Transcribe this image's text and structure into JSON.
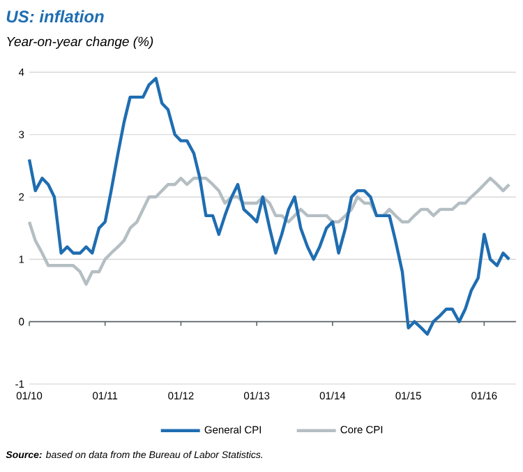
{
  "chart_data": {
    "type": "line",
    "title": "US: inflation",
    "subtitle": "Year-on-year change (%)",
    "x": [
      "2010-01",
      "2010-02",
      "2010-03",
      "2010-04",
      "2010-05",
      "2010-06",
      "2010-07",
      "2010-08",
      "2010-09",
      "2010-10",
      "2010-11",
      "2010-12",
      "2011-01",
      "2011-02",
      "2011-03",
      "2011-04",
      "2011-05",
      "2011-06",
      "2011-07",
      "2011-08",
      "2011-09",
      "2011-10",
      "2011-11",
      "2011-12",
      "2012-01",
      "2012-02",
      "2012-03",
      "2012-04",
      "2012-05",
      "2012-06",
      "2012-07",
      "2012-08",
      "2012-09",
      "2012-10",
      "2012-11",
      "2012-12",
      "2013-01",
      "2013-02",
      "2013-03",
      "2013-04",
      "2013-05",
      "2013-06",
      "2013-07",
      "2013-08",
      "2013-09",
      "2013-10",
      "2013-11",
      "2013-12",
      "2014-01",
      "2014-02",
      "2014-03",
      "2014-04",
      "2014-05",
      "2014-06",
      "2014-07",
      "2014-08",
      "2014-09",
      "2014-10",
      "2014-11",
      "2014-12",
      "2015-01",
      "2015-02",
      "2015-03",
      "2015-04",
      "2015-05",
      "2015-06",
      "2015-07",
      "2015-08",
      "2015-09",
      "2015-10",
      "2015-11",
      "2015-12",
      "2016-01",
      "2016-02",
      "2016-03",
      "2016-04",
      "2016-05"
    ],
    "series": [
      {
        "name": "General CPI",
        "color": "#1f6db1",
        "values": [
          2.6,
          2.1,
          2.3,
          2.2,
          2.0,
          1.1,
          1.2,
          1.1,
          1.1,
          1.2,
          1.1,
          1.5,
          1.6,
          2.1,
          2.7,
          3.2,
          3.6,
          3.6,
          3.6,
          3.8,
          3.9,
          3.5,
          3.4,
          3.0,
          2.9,
          2.9,
          2.7,
          2.3,
          1.7,
          1.7,
          1.4,
          1.7,
          2.0,
          2.2,
          1.8,
          1.7,
          1.6,
          2.0,
          1.5,
          1.1,
          1.4,
          1.8,
          2.0,
          1.5,
          1.2,
          1.0,
          1.2,
          1.5,
          1.6,
          1.1,
          1.5,
          2.0,
          2.1,
          2.1,
          2.0,
          1.7,
          1.7,
          1.7,
          1.3,
          0.8,
          -0.1,
          0.0,
          -0.1,
          -0.2,
          0.0,
          0.1,
          0.2,
          0.2,
          0.0,
          0.2,
          0.5,
          0.7,
          1.4,
          1.0,
          0.9,
          1.1,
          1.0
        ]
      },
      {
        "name": "Core CPI",
        "color": "#b4bec3",
        "values": [
          1.6,
          1.3,
          1.1,
          0.9,
          0.9,
          0.9,
          0.9,
          0.9,
          0.8,
          0.6,
          0.8,
          0.8,
          1.0,
          1.1,
          1.2,
          1.3,
          1.5,
          1.6,
          1.8,
          2.0,
          2.0,
          2.1,
          2.2,
          2.2,
          2.3,
          2.2,
          2.3,
          2.3,
          2.3,
          2.2,
          2.1,
          1.9,
          2.0,
          2.0,
          1.9,
          1.9,
          1.9,
          2.0,
          1.9,
          1.7,
          1.7,
          1.6,
          1.7,
          1.8,
          1.7,
          1.7,
          1.7,
          1.7,
          1.6,
          1.6,
          1.7,
          1.8,
          2.0,
          1.9,
          1.9,
          1.7,
          1.7,
          1.8,
          1.7,
          1.6,
          1.6,
          1.7,
          1.8,
          1.8,
          1.7,
          1.8,
          1.8,
          1.8,
          1.9,
          1.9,
          2.0,
          2.1,
          2.2,
          2.3,
          2.2,
          2.1,
          2.2
        ]
      }
    ],
    "xlim": [
      "2010-01",
      "2016-06"
    ],
    "xticks": [
      {
        "value": "2010-01",
        "label": "01/10"
      },
      {
        "value": "2011-01",
        "label": "01/11"
      },
      {
        "value": "2012-01",
        "label": "01/12"
      },
      {
        "value": "2013-01",
        "label": "01/13"
      },
      {
        "value": "2014-01",
        "label": "01/14"
      },
      {
        "value": "2015-01",
        "label": "01/15"
      },
      {
        "value": "2016-01",
        "label": "01/16"
      }
    ],
    "ylim": [
      -1,
      4
    ],
    "yticks": [
      -1,
      0,
      1,
      2,
      3,
      4
    ],
    "grid": "y",
    "legend": "bottom",
    "line_style": "solid",
    "marker": "none",
    "ref_lines": [
      {
        "axis": "y",
        "value": 0,
        "color": "#5a6468"
      }
    ],
    "annotations": [
      "**Source:** based on data from the Bureau of Labor Statistics."
    ]
  }
}
